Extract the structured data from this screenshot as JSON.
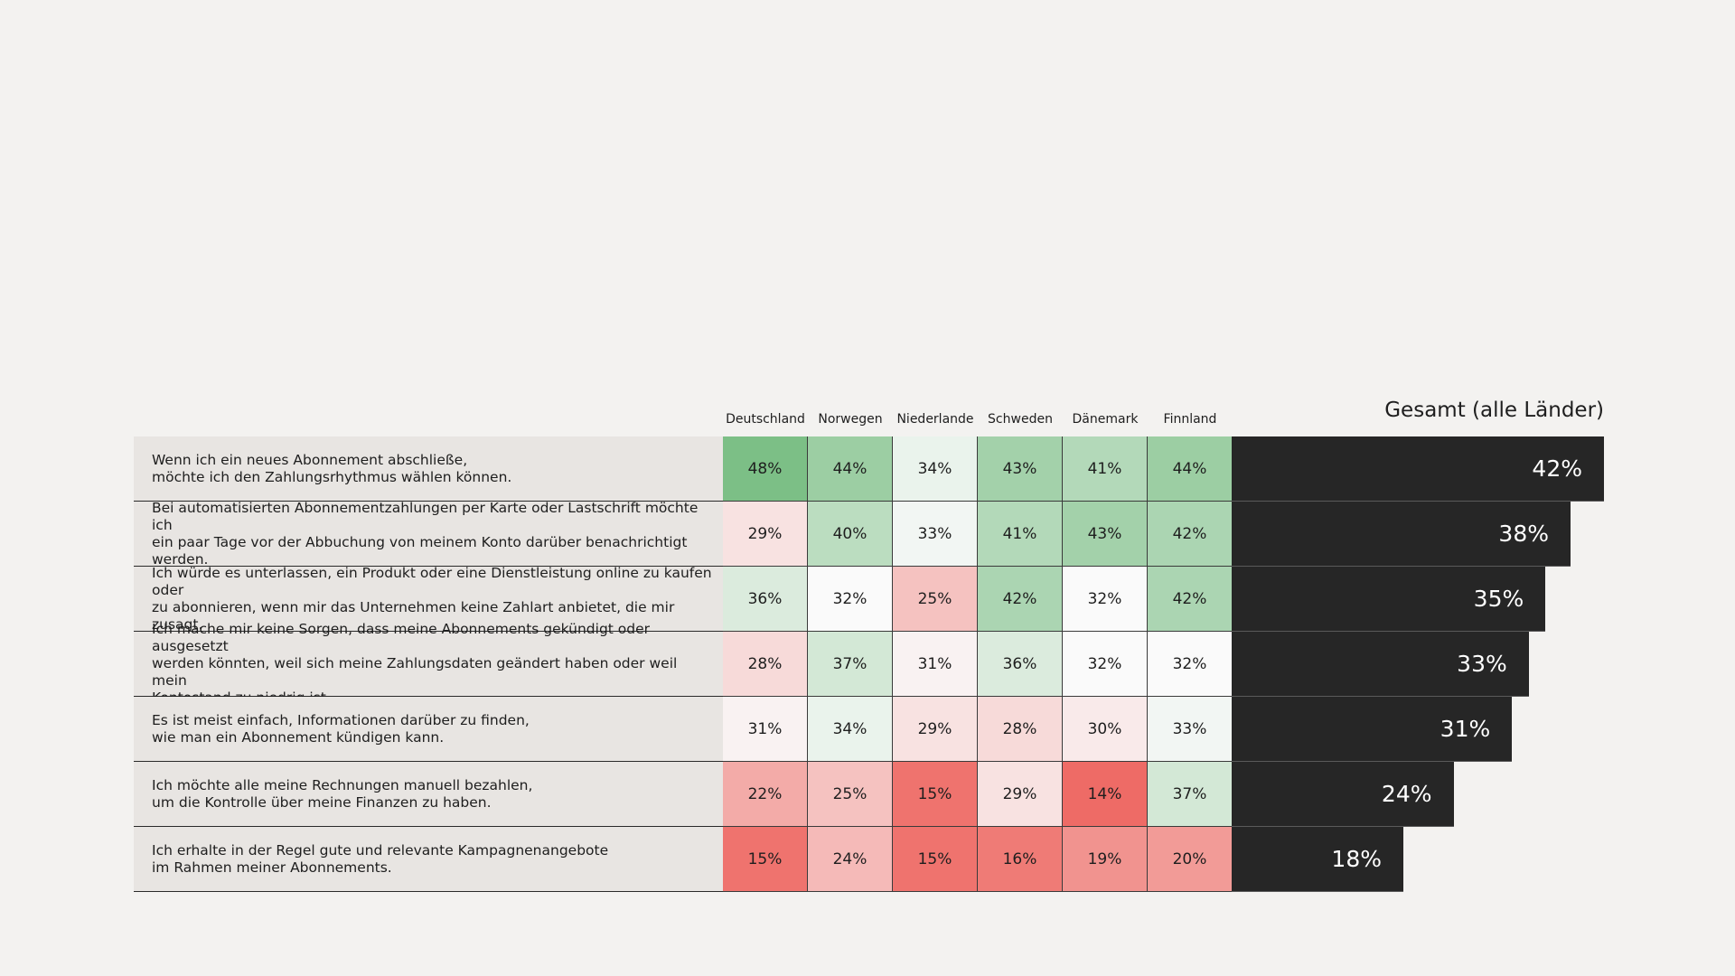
{
  "chart_data": {
    "type": "heatmap",
    "title": "",
    "countries": [
      "Deutschland",
      "Norwegen",
      "Niederlande",
      "Schweden",
      "Dänemark",
      "Finnland"
    ],
    "total_header": "Gesamt (alle Länder)",
    "value_unit": "%",
    "rows": [
      {
        "statement": "Wenn ich ein neues Abonnement abschließe,\nmöchte ich den Zahlungsrhythmus wählen können.",
        "values": [
          48,
          44,
          34,
          43,
          41,
          44
        ],
        "total": 42
      },
      {
        "statement": "Bei automatisierten Abonnementzahlungen per Karte oder Lastschrift möchte ich\nein paar Tage vor der Abbuchung von meinem Konto darüber benachrichtigt werden.",
        "values": [
          29,
          40,
          33,
          41,
          43,
          42
        ],
        "total": 38
      },
      {
        "statement": "Ich würde es unterlassen, ein Produkt oder eine Dienstleistung online zu kaufen oder\nzu abonnieren, wenn mir das Unternehmen keine Zahlart anbietet, die mir zusagt.",
        "values": [
          36,
          32,
          25,
          42,
          32,
          42
        ],
        "total": 35
      },
      {
        "statement": "Ich mache mir keine Sorgen, dass meine Abonnements gekündigt oder ausgesetzt\nwerden könnten, weil sich meine Zahlungsdaten geändert haben oder weil mein\nKontostand zu niedrig ist.",
        "values": [
          28,
          37,
          31,
          36,
          32,
          32
        ],
        "total": 33
      },
      {
        "statement": "Es ist meist einfach, Informationen darüber zu finden,\nwie man ein Abonnement kündigen kann.",
        "values": [
          31,
          34,
          29,
          28,
          30,
          33
        ],
        "total": 31
      },
      {
        "statement": "Ich möchte alle meine Rechnungen manuell bezahlen,\num die Kontrolle über meine Finanzen zu haben.",
        "values": [
          22,
          25,
          15,
          29,
          14,
          37
        ],
        "total": 24
      },
      {
        "statement": "Ich erhalte in der Regel gute und relevante Kampagnenangebote\nim Rahmen meiner Abonnements.",
        "values": [
          15,
          24,
          15,
          16,
          19,
          20
        ],
        "total": 18
      }
    ],
    "color_scale": {
      "low": "#ee6b66",
      "mid": "#fafafa",
      "high": "#7cbf86",
      "low_value": 14,
      "mid_value": 32,
      "high_value": 48
    },
    "total_bar_color": "#262626",
    "total_range": [
      0,
      42
    ]
  }
}
